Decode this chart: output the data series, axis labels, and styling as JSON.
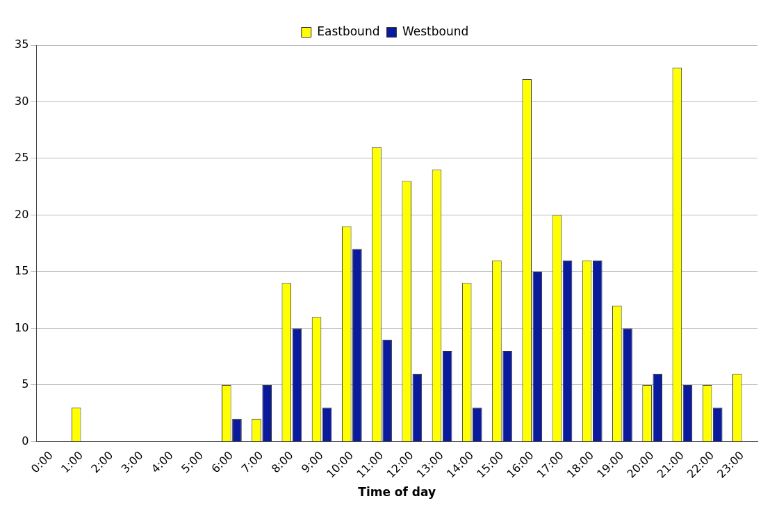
{
  "chart_data": {
    "type": "bar",
    "xlabel": "Time of day",
    "categories": [
      "0:00",
      "1:00",
      "2:00",
      "3:00",
      "4:00",
      "5:00",
      "6:00",
      "7:00",
      "8:00",
      "9:00",
      "10:00",
      "11:00",
      "12:00",
      "13:00",
      "14:00",
      "15:00",
      "16:00",
      "17:00",
      "18:00",
      "19:00",
      "20:00",
      "21:00",
      "22:00",
      "23:00"
    ],
    "series": [
      {
        "name": "Eastbound",
        "color": "#ffff00",
        "values": [
          0,
          3,
          0,
          0,
          0,
          0,
          5,
          2,
          14,
          11,
          19,
          26,
          23,
          24,
          14,
          16,
          32,
          20,
          16,
          12,
          5,
          33,
          5,
          6
        ]
      },
      {
        "name": "Westbound",
        "color": "#0a1a9c",
        "values": [
          0,
          0,
          0,
          0,
          0,
          0,
          2,
          5,
          10,
          3,
          17,
          9,
          6,
          8,
          3,
          8,
          15,
          16,
          16,
          10,
          6,
          5,
          3,
          0
        ]
      }
    ],
    "ylim": [
      0,
      35
    ],
    "yticks": [
      0,
      5,
      10,
      15,
      20,
      25,
      30,
      35
    ],
    "grid": "y",
    "legend": "top"
  }
}
